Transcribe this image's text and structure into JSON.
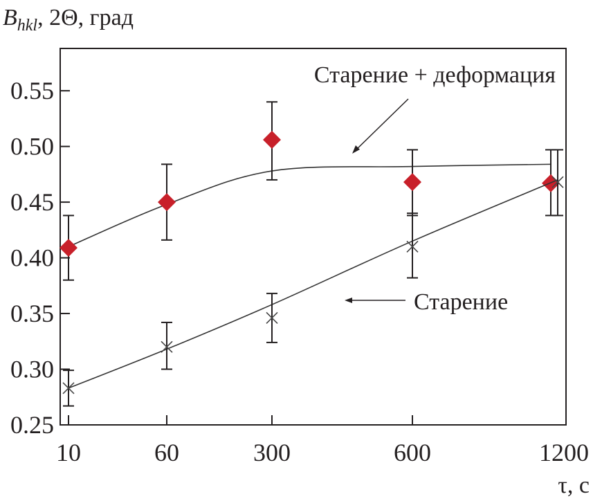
{
  "chart_data": {
    "type": "scatter",
    "ylabel_main": "B",
    "ylabel_sub": "hkl",
    "ylabel_rest": ", 2Θ, град",
    "xlabel": "τ, с",
    "categories": [
      "10",
      "60",
      "300",
      "600",
      "1200"
    ],
    "yticks": [
      "0.25",
      "0.30",
      "0.35",
      "0.40",
      "0.45",
      "0.50",
      "0.55"
    ],
    "ylim": [
      0.25,
      0.588
    ],
    "grid": false,
    "series": [
      {
        "name": "Старение + деформация",
        "marker": "diamond",
        "color": "#c8202a",
        "values": [
          0.409,
          0.45,
          0.506,
          0.468,
          0.467
        ],
        "err_low": [
          0.38,
          0.416,
          0.47,
          0.438,
          0.438
        ],
        "err_high": [
          0.438,
          0.484,
          0.54,
          0.497,
          0.497
        ],
        "fit": [
          0.41,
          0.448,
          0.478,
          0.482,
          0.484
        ]
      },
      {
        "name": "Старение",
        "marker": "cross",
        "color": "#444444",
        "values": [
          0.283,
          0.32,
          0.346,
          0.41,
          0.468
        ],
        "err_low": [
          0.267,
          0.3,
          0.324,
          0.382,
          0.438
        ],
        "err_high": [
          0.299,
          0.342,
          0.368,
          0.44,
          0.497
        ],
        "fit": [
          0.283,
          0.318,
          0.358,
          0.415,
          0.47
        ]
      }
    ]
  }
}
